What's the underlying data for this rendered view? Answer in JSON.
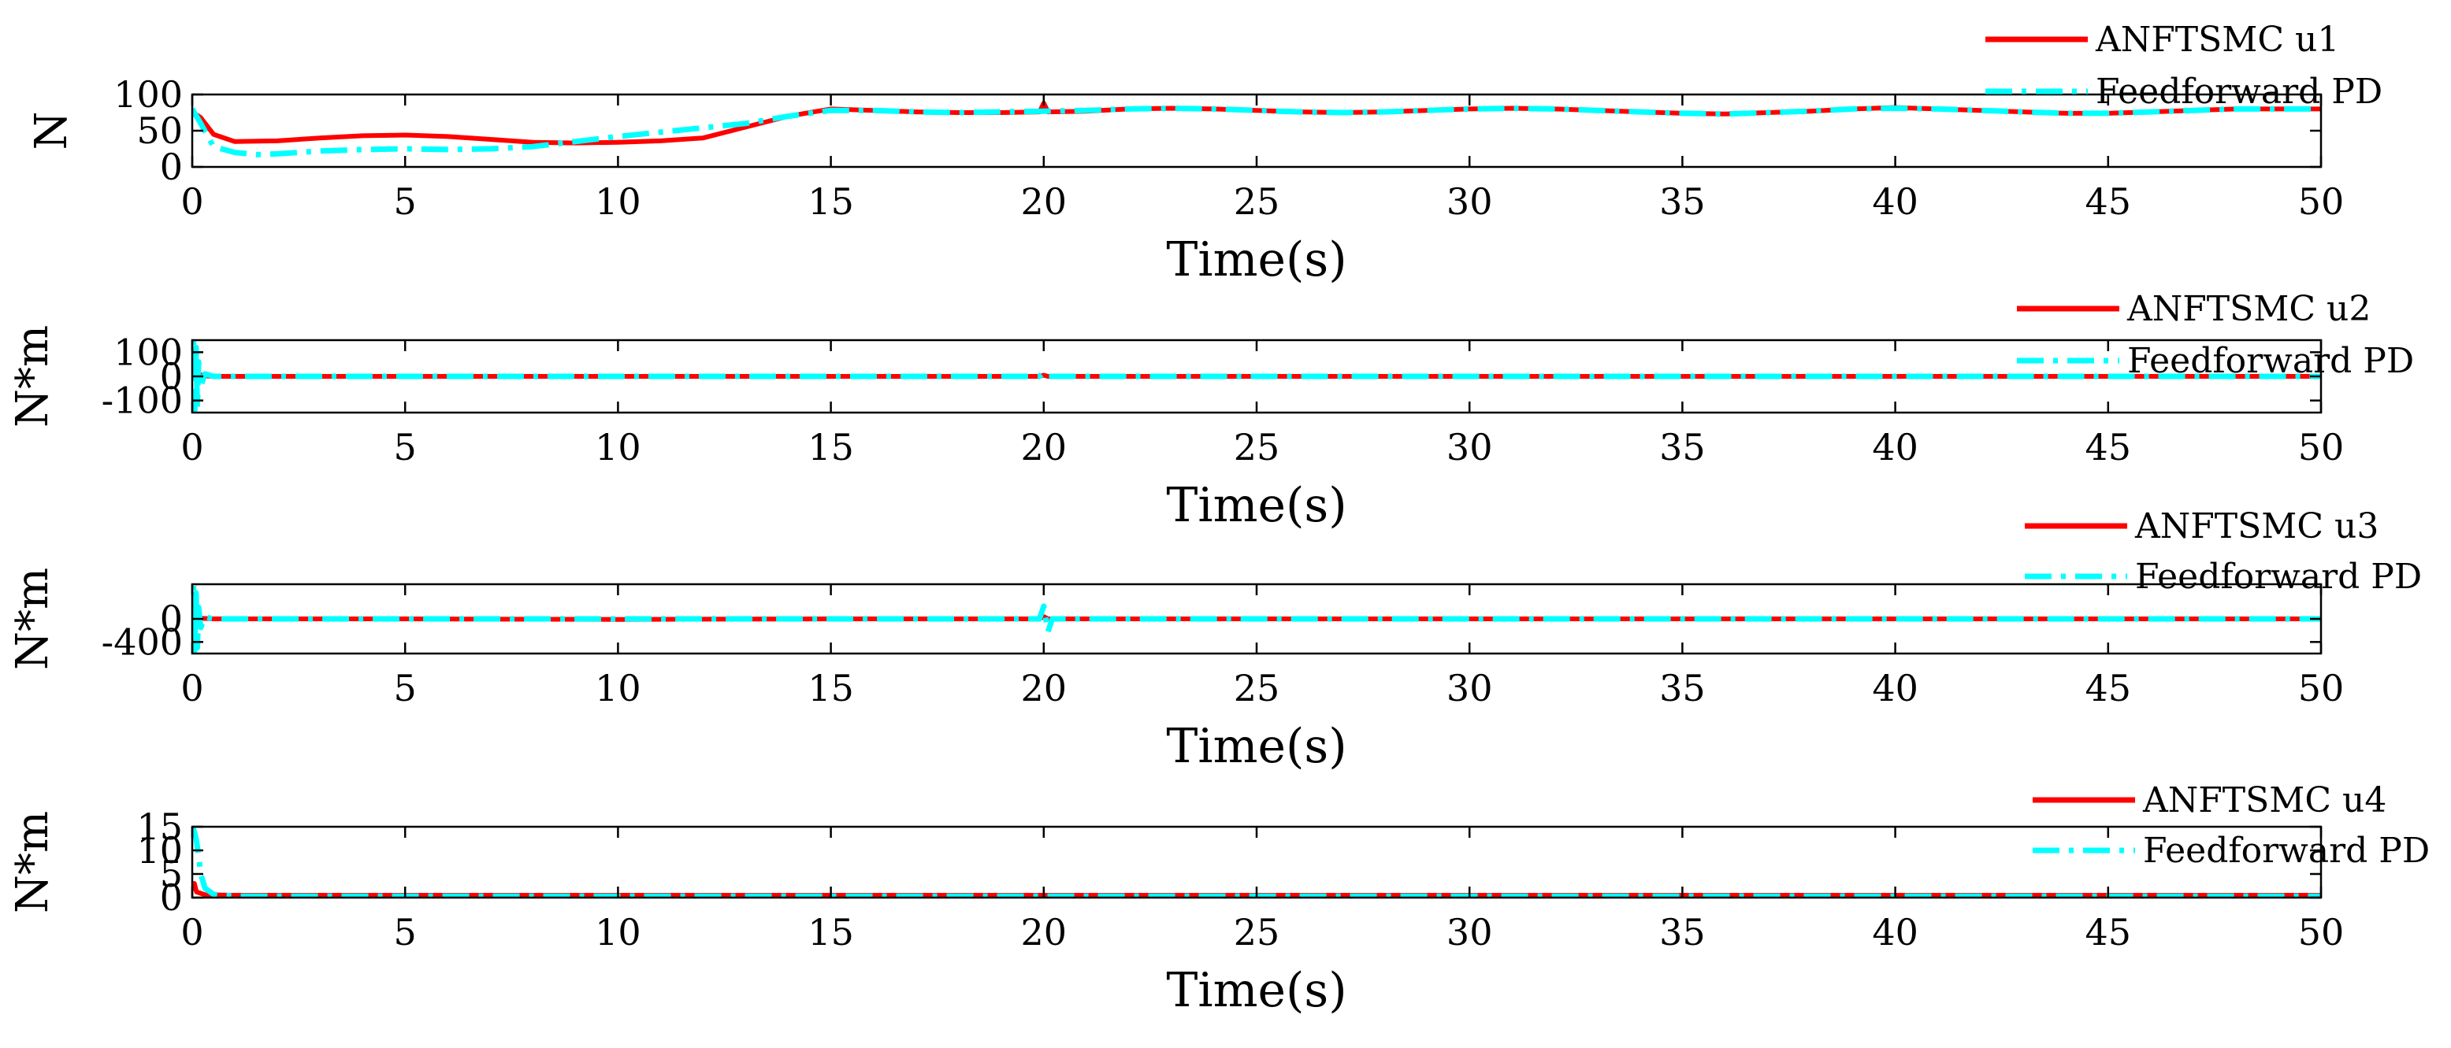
{
  "colors": {
    "anftsmc": "#ff0000",
    "pd": "#00ffff",
    "axis": "#000000"
  },
  "chart_data": [
    {
      "type": "line",
      "xlabel": "Time(s)",
      "ylabel": "N",
      "xlim": [
        0,
        50
      ],
      "ylim": [
        0,
        100
      ],
      "xticks": [
        "0",
        "5",
        "10",
        "15",
        "20",
        "25",
        "30",
        "35",
        "40",
        "45",
        "50"
      ],
      "yticks": [
        {
          "value": 0,
          "label": "0"
        },
        {
          "value": 50,
          "label": "50"
        },
        {
          "value": 100,
          "label": "100"
        }
      ],
      "legend_position": "top-right",
      "series": [
        {
          "name": "ANFTSMC u1",
          "style": "solid",
          "x": [
            0,
            0.2,
            0.5,
            1,
            2,
            3,
            4,
            5,
            6,
            7,
            8,
            9,
            10,
            11,
            12,
            13,
            14,
            15,
            16,
            17,
            18,
            19,
            19.9,
            20,
            20.1,
            21,
            22,
            23,
            24,
            25,
            26,
            27,
            28,
            29,
            30,
            31,
            32,
            33,
            34,
            35,
            36,
            37,
            38,
            39,
            40,
            41,
            42,
            43,
            44,
            45,
            46,
            47,
            48,
            49,
            50
          ],
          "y": [
            76,
            68,
            45,
            35,
            36,
            40,
            43,
            44,
            42,
            38,
            34,
            33,
            34,
            36,
            40,
            55,
            70,
            80,
            78,
            76,
            75,
            75,
            76,
            88,
            76,
            77,
            80,
            81,
            80,
            78,
            76,
            75,
            76,
            78,
            80,
            81,
            80,
            78,
            76,
            74,
            73,
            75,
            77,
            80,
            82,
            80,
            78,
            76,
            74,
            74,
            76,
            78,
            80,
            80,
            80
          ]
        },
        {
          "name": "Feedforward PD",
          "style": "dashdot",
          "x": [
            0,
            0.2,
            0.5,
            1,
            1.5,
            2,
            3,
            4,
            5,
            6,
            7,
            8,
            9,
            10,
            11,
            12,
            13,
            14,
            15,
            16,
            17,
            18,
            19,
            20,
            21,
            22,
            23,
            24,
            25,
            26,
            27,
            28,
            29,
            30,
            31,
            32,
            33,
            34,
            35,
            36,
            37,
            38,
            39,
            40,
            41,
            42,
            43,
            44,
            45,
            46,
            47,
            48,
            49,
            50
          ],
          "y": [
            80,
            60,
            28,
            20,
            17,
            18,
            22,
            24,
            25,
            24,
            25,
            28,
            35,
            42,
            48,
            54,
            60,
            70,
            78,
            78,
            76,
            75,
            76,
            77,
            78,
            80,
            81,
            80,
            78,
            76,
            75,
            76,
            78,
            80,
            81,
            80,
            78,
            76,
            74,
            73,
            75,
            77,
            80,
            81,
            80,
            78,
            76,
            74,
            74,
            76,
            78,
            80,
            80,
            80
          ]
        }
      ]
    },
    {
      "type": "line",
      "xlabel": "Time(s)",
      "ylabel": "N*m",
      "xlim": [
        0,
        50
      ],
      "ylim": [
        -150,
        150
      ],
      "xticks": [
        "0",
        "5",
        "10",
        "15",
        "20",
        "25",
        "30",
        "35",
        "40",
        "45",
        "50"
      ],
      "yticks": [
        {
          "value": -100,
          "label": "-100"
        },
        {
          "value": 0,
          "label": "0"
        },
        {
          "value": 100,
          "label": "100"
        }
      ],
      "legend_position": "top-right",
      "series": [
        {
          "name": "ANFTSMC u2",
          "style": "solid",
          "x": [
            0,
            0.05,
            0.1,
            0.15,
            0.3,
            0.5,
            1,
            5,
            10,
            15,
            19.9,
            20,
            20.1,
            25,
            30,
            35,
            40,
            45,
            50
          ],
          "y": [
            0,
            20,
            -15,
            8,
            2,
            0,
            0,
            0,
            0,
            0,
            0,
            5,
            0,
            0,
            0,
            0,
            0,
            0,
            0
          ]
        },
        {
          "name": "Feedforward PD",
          "style": "dashdot",
          "x": [
            0,
            0.03,
            0.06,
            0.09,
            0.12,
            0.15,
            0.2,
            0.3,
            0.5,
            1,
            5,
            10,
            15,
            19.9,
            20,
            20.1,
            25,
            30,
            35,
            40,
            45,
            50
          ],
          "y": [
            0,
            150,
            -140,
            120,
            -130,
            60,
            -40,
            10,
            0,
            0,
            0,
            0,
            0,
            0,
            15,
            0,
            0,
            0,
            0,
            0,
            0,
            0
          ]
        }
      ]
    },
    {
      "type": "line",
      "xlabel": "Time(s)",
      "ylabel": "N*m",
      "xlim": [
        0,
        50
      ],
      "ylim": [
        -600,
        600
      ],
      "xticks": [
        "0",
        "5",
        "10",
        "15",
        "20",
        "25",
        "30",
        "35",
        "40",
        "45",
        "50"
      ],
      "yticks": [
        {
          "value": -400,
          "label": "-400"
        },
        {
          "value": 0,
          "label": "0"
        }
      ],
      "legend_position": "top-right",
      "series": [
        {
          "name": "ANFTSMC u3",
          "style": "solid",
          "x": [
            0,
            0.05,
            0.1,
            0.2,
            0.5,
            1,
            5,
            10,
            15,
            19.9,
            20,
            20.1,
            25,
            30,
            35,
            40,
            45,
            50
          ],
          "y": [
            0,
            60,
            -40,
            10,
            0,
            0,
            0,
            -10,
            0,
            0,
            40,
            0,
            0,
            0,
            0,
            0,
            0,
            0
          ]
        },
        {
          "name": "Feedforward PD",
          "style": "dashdot",
          "x": [
            0,
            0.03,
            0.06,
            0.09,
            0.12,
            0.15,
            0.2,
            0.3,
            0.5,
            1,
            5,
            10,
            15,
            19.9,
            20,
            20.1,
            20.2,
            25,
            30,
            35,
            40,
            45,
            50
          ],
          "y": [
            0,
            600,
            -550,
            450,
            -500,
            200,
            -150,
            30,
            0,
            0,
            0,
            0,
            0,
            0,
            220,
            -220,
            0,
            0,
            0,
            0,
            0,
            0,
            0
          ]
        }
      ]
    },
    {
      "type": "line",
      "xlabel": "Time(s)",
      "ylabel": "N*m",
      "xlim": [
        0,
        50
      ],
      "ylim": [
        0,
        15
      ],
      "xticks": [
        "0",
        "5",
        "10",
        "15",
        "20",
        "25",
        "30",
        "35",
        "40",
        "45",
        "50"
      ],
      "yticks": [
        {
          "value": 0,
          "label": "0"
        },
        {
          "value": 5,
          "label": "5"
        },
        {
          "value": 10,
          "label": "10"
        },
        {
          "value": 15,
          "label": "15"
        }
      ],
      "legend_position": "top-right",
      "series": [
        {
          "name": "ANFTSMC u4",
          "style": "solid",
          "x": [
            0,
            0.05,
            0.1,
            0.3,
            1,
            5,
            10,
            15,
            20,
            25,
            30,
            35,
            40,
            45,
            50
          ],
          "y": [
            1.5,
            3,
            1.2,
            0.6,
            0.5,
            0.5,
            0.5,
            0.5,
            0.5,
            0.5,
            0.5,
            0.5,
            0.5,
            0.5,
            0.5
          ]
        },
        {
          "name": "Feedforward PD",
          "style": "dashdot",
          "x": [
            0,
            0.05,
            0.1,
            0.15,
            0.2,
            0.3,
            0.5,
            1,
            5,
            10,
            15,
            20,
            25,
            30,
            35,
            40,
            45,
            50
          ],
          "y": [
            15,
            14,
            12,
            9,
            5,
            2,
            0.7,
            0.3,
            0.3,
            0.3,
            0.3,
            0.3,
            0.3,
            0.3,
            0.3,
            0.3,
            0.3,
            0.3
          ]
        }
      ]
    }
  ]
}
